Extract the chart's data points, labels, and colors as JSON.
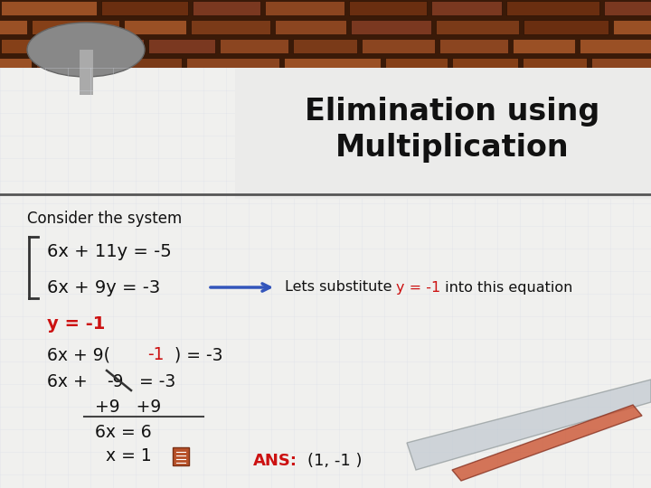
{
  "title_line1": "Elimination using",
  "title_line2": "Multiplication",
  "title_fontsize": 24,
  "title_color": "#111111",
  "consider_text": "Consider the system",
  "eq1": "6x + 11y = -5",
  "eq2": "6x + 9y = -3",
  "arrow_text": "Lets substitute ",
  "arrow_highlight": "y = -1",
  "arrow_end": " into this equation",
  "y_result": "y = -1",
  "red_color": "#cc1111",
  "blue_color": "#3355bb",
  "black_color": "#111111",
  "ans_color": "#cc1111",
  "paper_color": "#f0f0ee",
  "upper_bg": "#2a1a0a",
  "brick_colors": [
    "#7a3a18",
    "#8b4520",
    "#6a2e10",
    "#9a5025"
  ],
  "divider_color": "#444444",
  "grid_color": "#dddddd"
}
